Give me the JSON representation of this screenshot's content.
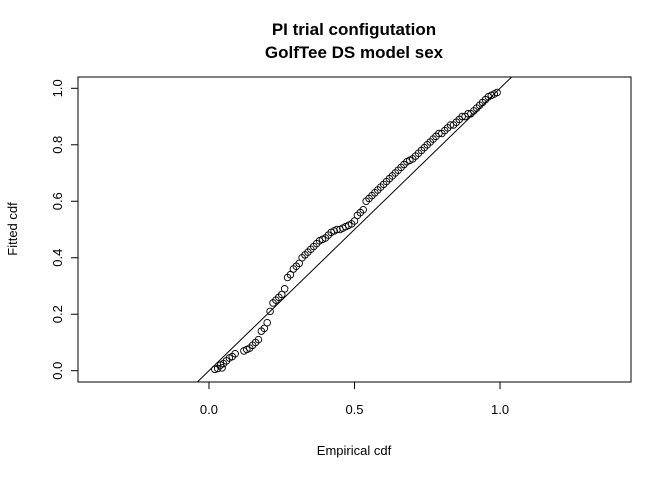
{
  "chart_data": {
    "type": "scatter",
    "title": "PI trial configutation",
    "subtitle": "GolfTee DS model sex",
    "xlabel": "Empirical cdf",
    "ylabel": "Fitted cdf",
    "xlim": [
      -0.45,
      1.45
    ],
    "ylim": [
      -0.04,
      1.04
    ],
    "xticks": [
      0.0,
      0.5,
      1.0
    ],
    "xtick_labels": [
      "0.0",
      "0.5",
      "1.0"
    ],
    "yticks": [
      0.0,
      0.2,
      0.4,
      0.6,
      0.8,
      1.0
    ],
    "ytick_labels": [
      "0.0",
      "0.2",
      "0.4",
      "0.6",
      "0.8",
      "1.0"
    ],
    "grid": false,
    "reference_line": {
      "slope": 1,
      "intercept": 0
    },
    "point_style": "open-circle",
    "x": [
      0.02,
      0.03,
      0.04,
      0.045,
      0.05,
      0.06,
      0.07,
      0.08,
      0.09,
      0.12,
      0.13,
      0.14,
      0.15,
      0.16,
      0.17,
      0.18,
      0.19,
      0.2,
      0.21,
      0.22,
      0.23,
      0.24,
      0.25,
      0.26,
      0.27,
      0.28,
      0.29,
      0.3,
      0.31,
      0.32,
      0.33,
      0.34,
      0.35,
      0.36,
      0.37,
      0.38,
      0.39,
      0.4,
      0.41,
      0.42,
      0.43,
      0.44,
      0.45,
      0.46,
      0.47,
      0.48,
      0.49,
      0.5,
      0.51,
      0.52,
      0.53,
      0.54,
      0.55,
      0.56,
      0.57,
      0.58,
      0.59,
      0.6,
      0.61,
      0.62,
      0.63,
      0.64,
      0.65,
      0.66,
      0.67,
      0.68,
      0.69,
      0.7,
      0.71,
      0.72,
      0.73,
      0.74,
      0.75,
      0.76,
      0.77,
      0.78,
      0.79,
      0.8,
      0.81,
      0.82,
      0.83,
      0.84,
      0.85,
      0.86,
      0.87,
      0.88,
      0.89,
      0.9,
      0.91,
      0.92,
      0.93,
      0.94,
      0.95,
      0.96,
      0.97,
      0.98,
      0.99
    ],
    "y": [
      0.005,
      0.008,
      0.02,
      0.01,
      0.025,
      0.035,
      0.045,
      0.05,
      0.06,
      0.07,
      0.075,
      0.08,
      0.09,
      0.1,
      0.11,
      0.14,
      0.15,
      0.17,
      0.21,
      0.24,
      0.25,
      0.26,
      0.27,
      0.29,
      0.33,
      0.34,
      0.36,
      0.37,
      0.38,
      0.4,
      0.41,
      0.42,
      0.43,
      0.44,
      0.45,
      0.46,
      0.465,
      0.47,
      0.48,
      0.49,
      0.495,
      0.5,
      0.5,
      0.505,
      0.51,
      0.515,
      0.52,
      0.53,
      0.55,
      0.56,
      0.57,
      0.6,
      0.61,
      0.62,
      0.63,
      0.64,
      0.65,
      0.66,
      0.67,
      0.68,
      0.69,
      0.7,
      0.71,
      0.72,
      0.73,
      0.74,
      0.745,
      0.75,
      0.76,
      0.77,
      0.78,
      0.79,
      0.8,
      0.81,
      0.82,
      0.83,
      0.84,
      0.84,
      0.85,
      0.86,
      0.87,
      0.87,
      0.88,
      0.89,
      0.9,
      0.9,
      0.91,
      0.91,
      0.92,
      0.93,
      0.94,
      0.95,
      0.96,
      0.97,
      0.975,
      0.98,
      0.985
    ]
  }
}
